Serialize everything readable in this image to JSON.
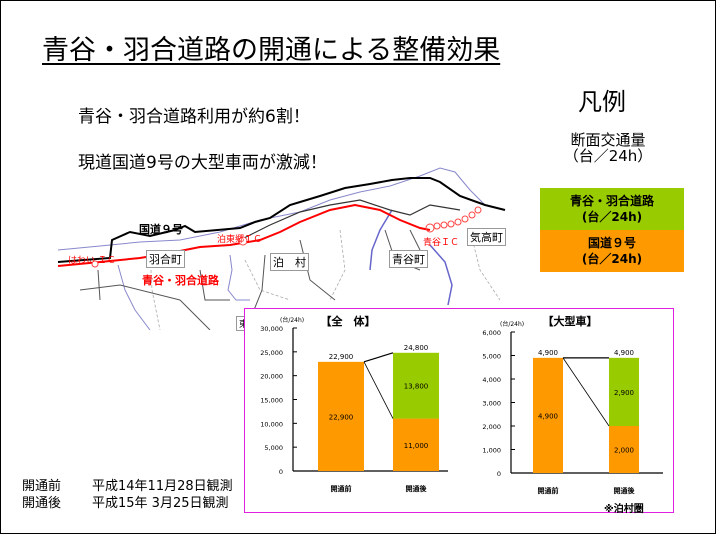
{
  "page": {
    "title": "青谷・羽合道路の開通による整備効果",
    "headlines": [
      "青谷・羽合道路利用が約6割！",
      "現道国道9号の大型車両が激減！"
    ]
  },
  "legend": {
    "title": "凡例",
    "subtitle_line1": "断面交通量",
    "subtitle_line2": "（台／24h）",
    "items": [
      {
        "line1": "青谷・羽合道路",
        "line2": "(台／24h)",
        "color": "#99cc00"
      },
      {
        "line1": "国道９号",
        "line2": "(台／24h)",
        "color": "#ff9900"
      }
    ]
  },
  "map": {
    "labels": {
      "route9": "国道９号",
      "hawai_ic": "はわい ＩＣ",
      "tomari_east_ic": "泊東郷ＩＣ",
      "aoya_ic": "青谷ＩＣ",
      "hawai_town": "羽合町",
      "tomari_village": "泊　村",
      "aoya_town": "青谷町",
      "ketaka_town": "気高町",
      "aoya_hawai_road": "青谷・羽合道路",
      "east_partial": "東"
    },
    "colors": {
      "new_road": "#ff0000",
      "route9": "#000000",
      "river": "#6666cc"
    }
  },
  "observations": [
    {
      "label": "開通前",
      "value": "平成14年11月28日観測"
    },
    {
      "label": "開通後",
      "value": "平成15年  3月25日観測"
    }
  ],
  "note": "※泊村圏",
  "chart_data": [
    {
      "type": "bar",
      "stacked": true,
      "title": "【全　体】",
      "ylabel": "(台/24h)",
      "ylim": [
        0,
        30000
      ],
      "yticks": [
        "0",
        "5,000",
        "10,000",
        "15,000",
        "20,000",
        "25,000",
        "30,000"
      ],
      "categories": [
        "開通前",
        "開通後"
      ],
      "series": [
        {
          "name": "国道９号",
          "color": "#ff9900",
          "values": [
            22900,
            11000
          ],
          "labels": [
            "22,900",
            "11,000"
          ]
        },
        {
          "name": "青谷・羽合道路",
          "color": "#99cc00",
          "values": [
            0,
            13800
          ],
          "labels": [
            "",
            "13,800"
          ]
        }
      ],
      "totals": [
        "22,900",
        "24,800"
      ]
    },
    {
      "type": "bar",
      "stacked": true,
      "title": "【大型車】",
      "ylabel": "(台/24h)",
      "ylim": [
        0,
        6000
      ],
      "yticks": [
        "0",
        "1,000",
        "2,000",
        "3,000",
        "4,000",
        "5,000",
        "6,000"
      ],
      "categories": [
        "開通前",
        "開通後"
      ],
      "series": [
        {
          "name": "国道９号",
          "color": "#ff9900",
          "values": [
            4900,
            2000
          ],
          "labels": [
            "4,900",
            "2,000"
          ]
        },
        {
          "name": "青谷・羽合道路",
          "color": "#99cc00",
          "values": [
            0,
            2900
          ],
          "labels": [
            "",
            "2,900"
          ]
        }
      ],
      "totals": [
        "4,900",
        "4,900"
      ]
    }
  ]
}
